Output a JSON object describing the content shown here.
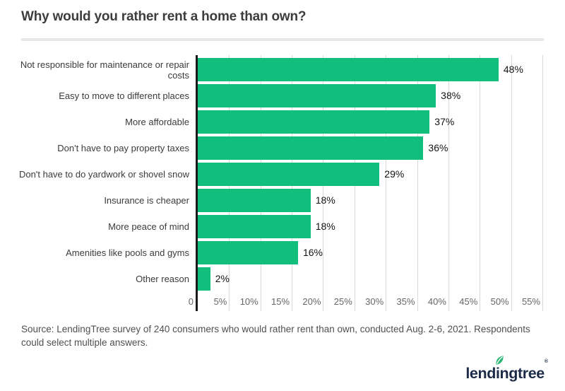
{
  "title": "Why would you rather rent a home than own?",
  "chart_data": {
    "type": "bar",
    "orientation": "horizontal",
    "categories": [
      "Not responsible for maintenance or repair costs",
      "Easy to move to different places",
      "More affordable",
      "Don't have to pay property taxes",
      "Don't have to do yardwork or shovel snow",
      "Insurance is cheaper",
      "More peace of mind",
      "Amenities like pools and gyms",
      "Other reason"
    ],
    "values": [
      48,
      38,
      37,
      36,
      29,
      18,
      18,
      16,
      2
    ],
    "value_labels": [
      "48%",
      "38%",
      "37%",
      "36%",
      "29%",
      "18%",
      "18%",
      "16%",
      "2%"
    ],
    "x_ticks": [
      "0",
      "5%",
      "10%",
      "15%",
      "20%",
      "25%",
      "30%",
      "35%",
      "40%",
      "45%",
      "50%",
      "55%"
    ],
    "xlim": [
      0,
      55
    ],
    "grid": "vertical",
    "legend": "none",
    "bar_color": "#12be7c",
    "gridline_color": "#d9d9d9",
    "axis_color": "#1a1a1a"
  },
  "source": {
    "text": "Source: LendingTree survey of 240 consumers who would rather rent than own, conducted Aug. 2-6, 2021. Respondents could select multiple answers."
  },
  "logo": {
    "wordmark": "lendingtree",
    "registered_mark": "®",
    "navy": "#1c2b47",
    "leaf_green": "#2bb673"
  }
}
